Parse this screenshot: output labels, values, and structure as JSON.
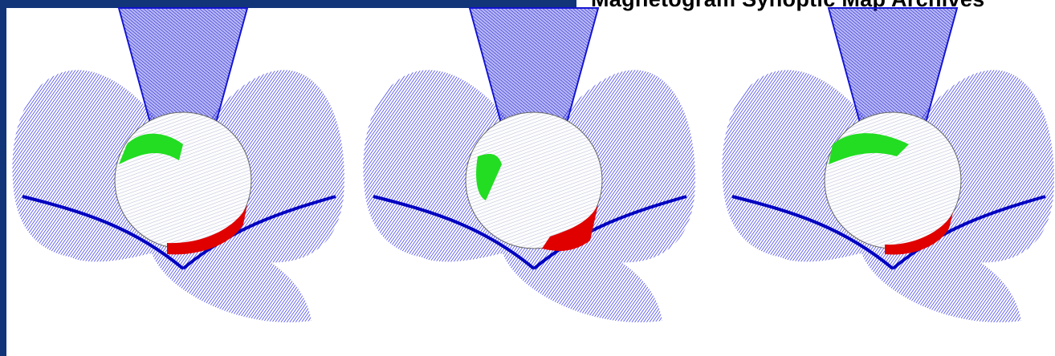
{
  "header": {
    "title": "Magnetogram Synoptic Map Archives"
  }
}
